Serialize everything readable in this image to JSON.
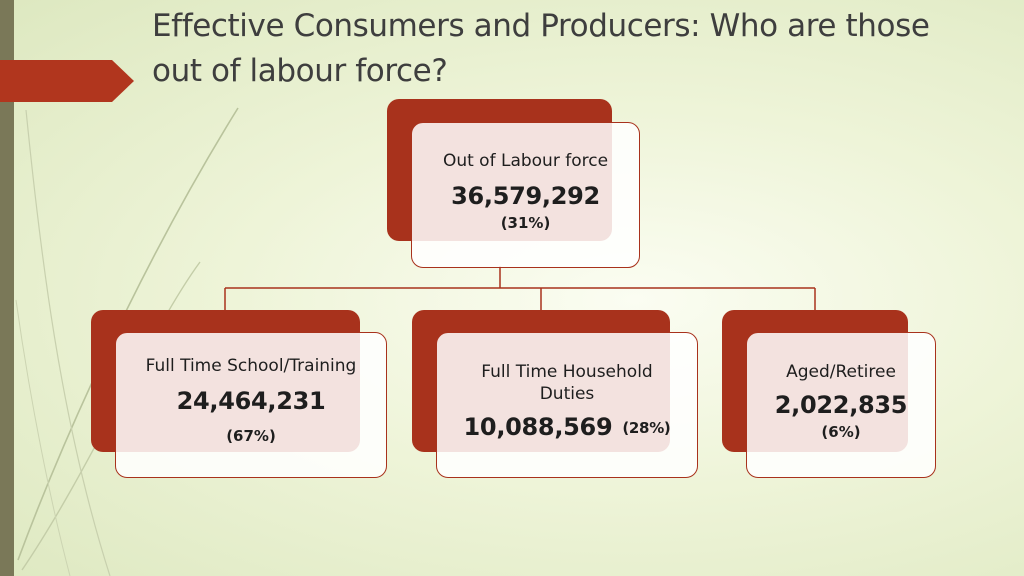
{
  "title": "Effective Consumers and Producers: Who are those out of labour force?",
  "colors": {
    "accent": "#a8321c",
    "sidebar": "#7a7858",
    "background": "#eef4d8"
  },
  "root": {
    "label": "Out of Labour force",
    "value": "36,579,292",
    "percent": "(31%)"
  },
  "children": [
    {
      "label": "Full Time School/Training",
      "value": "24,464,231",
      "percent": "(67%)"
    },
    {
      "label": "Full Time Household Duties",
      "value": "10,088,569",
      "percent": "(28%)"
    },
    {
      "label": "Aged/Retiree",
      "value": "2,022,835",
      "percent": "(6%)"
    }
  ]
}
